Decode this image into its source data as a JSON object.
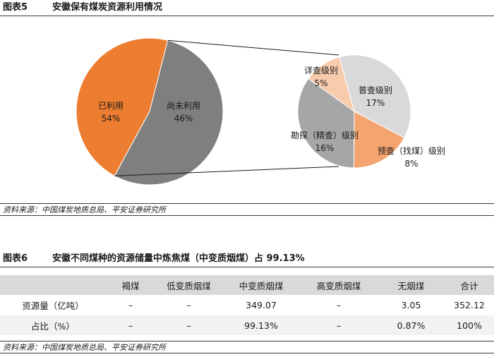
{
  "figure5": {
    "number": "图表5",
    "title": "安徽保有煤炭资源利用情况",
    "source": "资料来源：中国煤炭地质总局、平安证券研究所"
  },
  "chart_data": {
    "type": "pie",
    "main": {
      "slices": [
        {
          "label": "已利用",
          "value": 54,
          "display": "54%",
          "color": "#ed7d31"
        },
        {
          "label": "尚未利用",
          "value": 46,
          "display": "46%",
          "color": "#7f7f7f"
        }
      ]
    },
    "breakdown": {
      "slices": [
        {
          "label": "详查级别",
          "value": 5,
          "display": "5%",
          "color": "#f8cbad"
        },
        {
          "label": "普查级别",
          "value": 17,
          "display": "17%",
          "color": "#d9d9d9"
        },
        {
          "label": "预查（找煤）级别",
          "value": 8,
          "display": "8%",
          "color": "#f4a46f"
        },
        {
          "label": "勘探（精查）级别",
          "value": 16,
          "display": "16%",
          "color": "#a6a6a6"
        }
      ]
    }
  },
  "figure6": {
    "number": "图表6",
    "title": "安徽不同煤种的资源储量中炼焦煤（中变质烟煤）占 99.13%",
    "source": "资料来源：中国煤炭地质总局、平安证券研究所",
    "columns": [
      "",
      "褐煤",
      "低变质烟煤",
      "中变质烟煤",
      "高变质烟煤",
      "无烟煤",
      "合计"
    ],
    "rows": [
      {
        "label": "资源量（亿吨）",
        "cells": [
          "–",
          "–",
          "349.07",
          "–",
          "3.05",
          "352.12"
        ]
      },
      {
        "label": "占比（%）",
        "cells": [
          "–",
          "–",
          "99.13%",
          "–",
          "0.87%",
          "100%"
        ]
      }
    ]
  }
}
